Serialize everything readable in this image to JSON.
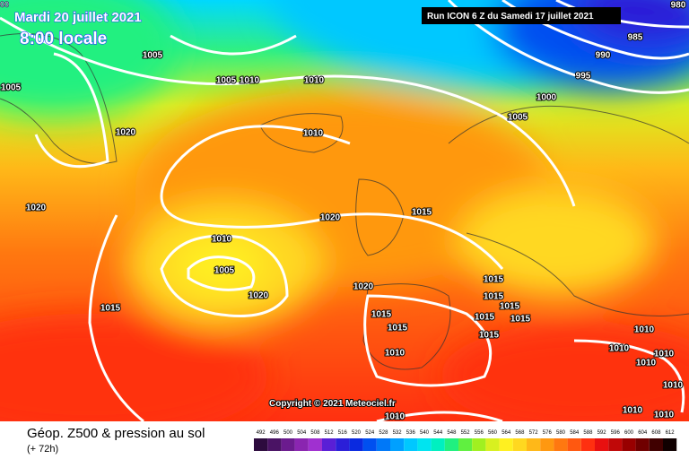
{
  "header": {
    "edge_text": "00",
    "date": "Mardi 20 juillet 2021",
    "time": "8:00 locale",
    "run": "Run ICON 6 Z du Samedi 17 juillet 2021"
  },
  "isobar_labels": [
    980,
    985,
    990,
    995,
    1000,
    1005,
    1005,
    1005,
    1005,
    1010,
    1010,
    1020,
    1010,
    1020,
    1020,
    1015,
    1010,
    1005,
    1020,
    1015,
    1020,
    1015,
    1015,
    1015,
    1015,
    1015,
    1015,
    1015,
    1015,
    1010,
    1010,
    1010,
    1010,
    1010,
    1010,
    1010,
    1010,
    1010
  ],
  "copyright": "Copyright © 2021 Meteociel.fr",
  "footer": {
    "title": "Géop. Z500 & pression au sol",
    "subtitle": "(+ 72h)"
  },
  "legend": {
    "items": [
      {
        "value": 492,
        "color": "#2d0b3e"
      },
      {
        "value": 496,
        "color": "#4a1364"
      },
      {
        "value": 500,
        "color": "#6b1b8e"
      },
      {
        "value": 504,
        "color": "#8a25b0"
      },
      {
        "value": 508,
        "color": "#a030d0"
      },
      {
        "value": 512,
        "color": "#5a1fd6"
      },
      {
        "value": 516,
        "color": "#2b1fd8"
      },
      {
        "value": 520,
        "color": "#0a2ae0"
      },
      {
        "value": 524,
        "color": "#0050f0"
      },
      {
        "value": 528,
        "color": "#0078f8"
      },
      {
        "value": 532,
        "color": "#00a0ff"
      },
      {
        "value": 536,
        "color": "#00c8ff"
      },
      {
        "value": 540,
        "color": "#00e4f0"
      },
      {
        "value": 544,
        "color": "#00f0c0"
      },
      {
        "value": 548,
        "color": "#20f080"
      },
      {
        "value": 552,
        "color": "#60f040"
      },
      {
        "value": 556,
        "color": "#a0f020"
      },
      {
        "value": 560,
        "color": "#d8f020"
      },
      {
        "value": 564,
        "color": "#fff020"
      },
      {
        "value": 568,
        "color": "#ffd820"
      },
      {
        "value": 572,
        "color": "#ffb818"
      },
      {
        "value": 576,
        "color": "#ff9810"
      },
      {
        "value": 580,
        "color": "#ff7810"
      },
      {
        "value": 584,
        "color": "#ff5810"
      },
      {
        "value": 588,
        "color": "#ff3010"
      },
      {
        "value": 592,
        "color": "#e81010"
      },
      {
        "value": 596,
        "color": "#c00808"
      },
      {
        "value": 600,
        "color": "#980000"
      },
      {
        "value": 604,
        "color": "#700000"
      },
      {
        "value": 608,
        "color": "#400000"
      },
      {
        "value": 612,
        "color": "#100000"
      }
    ]
  }
}
